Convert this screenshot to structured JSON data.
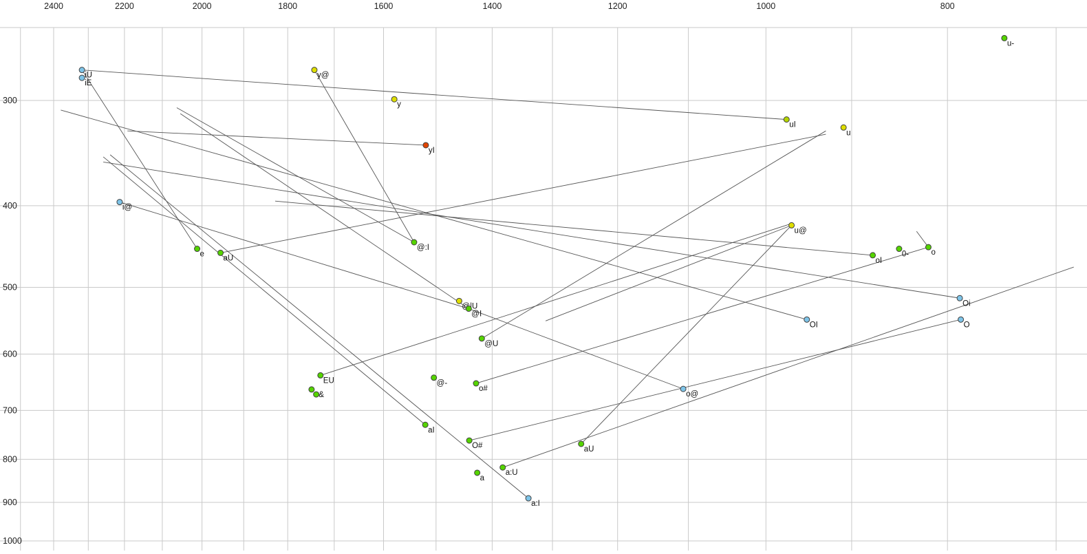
{
  "chart_data": {
    "type": "scatter",
    "title": "",
    "xlabel": "",
    "ylabel": "",
    "x_axis": {
      "ticks": [
        2400,
        2200,
        2000,
        1800,
        1600,
        1400,
        1200,
        1000,
        800
      ],
      "scale": "log",
      "reversed": true
    },
    "y_axis": {
      "ticks": [
        300,
        400,
        500,
        600,
        700,
        800,
        900,
        1000
      ],
      "scale": "log",
      "reversed": true
    },
    "grid": {
      "x_min": 700,
      "x_max": 2500,
      "x_step": 100,
      "y_min": 300,
      "y_max": 1000,
      "y_step": 100,
      "color": "#c9c9c9"
    },
    "colors": {
      "green": "#55d400",
      "yellow": "#dede00",
      "yellowgreen": "#b4d400",
      "blue": "#7ec4e8",
      "red": "#e04400",
      "point_stroke": "#404040",
      "line": "#555555",
      "label": "#111111",
      "tick": "#222222"
    },
    "points": [
      {
        "label": "u-",
        "f2": 746,
        "f1": 253,
        "color": "green"
      },
      {
        "label": "iU",
        "f2": 2318,
        "f1": 276,
        "color": "blue"
      },
      {
        "label": "iE",
        "f2": 2318,
        "f1": 282,
        "color": "blue"
      },
      {
        "label": "y@",
        "f2": 1742,
        "f1": 276,
        "color": "yellow"
      },
      {
        "label": "y",
        "f2": 1579,
        "f1": 299,
        "color": "yellow"
      },
      {
        "label": "uI",
        "f2": 975,
        "f1": 316,
        "color": "yellowgreen"
      },
      {
        "label": "u",
        "f2": 909,
        "f1": 323,
        "color": "yellow"
      },
      {
        "label": "yI",
        "f2": 1519,
        "f1": 339,
        "color": "red"
      },
      {
        "label": "i@",
        "f2": 2213,
        "f1": 396,
        "color": "blue"
      },
      {
        "label": "u@",
        "f2": 969,
        "f1": 422,
        "color": "yellow"
      },
      {
        "label": "0-",
        "f2": 849,
        "f1": 450,
        "color": "green"
      },
      {
        "label": "o",
        "f2": 819,
        "f1": 448,
        "color": "green"
      },
      {
        "label": "oI",
        "f2": 877,
        "f1": 458,
        "color": "green"
      },
      {
        "label": "@:I",
        "f2": 1541,
        "f1": 442,
        "color": "green"
      },
      {
        "label": "e",
        "f2": 2012,
        "f1": 450,
        "color": "green"
      },
      {
        "label": "aU",
        "f2": 1955,
        "f1": 455,
        "color": "green"
      },
      {
        "label": "@|U",
        "f2": 1458,
        "f1": 519,
        "color": "yellow"
      },
      {
        "label": "@I",
        "f2": 1441,
        "f1": 530,
        "color": "green"
      },
      {
        "label": "OI",
        "f2": 951,
        "f1": 546,
        "color": "blue"
      },
      {
        "label": "Oi",
        "f2": 788,
        "f1": 515,
        "color": "blue"
      },
      {
        "label": "O",
        "f2": 787,
        "f1": 546,
        "color": "blue"
      },
      {
        "label": "@U",
        "f2": 1418,
        "f1": 575,
        "color": "green"
      },
      {
        "label": "EU",
        "f2": 1729,
        "f1": 636,
        "color": "green"
      },
      {
        "label": "e&",
        "f2": 1748,
        "f1": 661,
        "color": "green"
      },
      {
        "label": "",
        "f2": 1738,
        "f1": 670,
        "color": "green"
      },
      {
        "label": "@-",
        "f2": 1504,
        "f1": 640,
        "color": "green"
      },
      {
        "label": "o#",
        "f2": 1428,
        "f1": 650,
        "color": "green"
      },
      {
        "label": "o@",
        "f2": 1107,
        "f1": 660,
        "color": "blue"
      },
      {
        "label": "aI",
        "f2": 1520,
        "f1": 728,
        "color": "green"
      },
      {
        "label": "O#",
        "f2": 1440,
        "f1": 760,
        "color": "green"
      },
      {
        "label": "aU",
        "f2": 1255,
        "f1": 767,
        "color": "green"
      },
      {
        "label": "a:U",
        "f2": 1382,
        "f1": 818,
        "color": "green"
      },
      {
        "label": "a",
        "f2": 1426,
        "f1": 830,
        "color": "green"
      },
      {
        "label": "a:I",
        "f2": 1339,
        "f1": 890,
        "color": "blue"
      }
    ],
    "segments": [
      [
        2318,
        276,
        975,
        316
      ],
      [
        2318,
        276,
        2012,
        450
      ],
      [
        1519,
        339,
        2192,
        326
      ],
      [
        1541,
        442,
        2063,
        306
      ],
      [
        1441,
        530,
        2054,
        311
      ],
      [
        1742,
        276,
        1541,
        442
      ],
      [
        2213,
        396,
        1441,
        530
      ],
      [
        1520,
        728,
        2258,
        350
      ],
      [
        1339,
        890,
        2239,
        348
      ],
      [
        1729,
        636,
        969,
        420
      ],
      [
        1418,
        575,
        929,
        326
      ],
      [
        1107,
        660,
        1441,
        530
      ],
      [
        1255,
        767,
        969,
        422
      ],
      [
        1382,
        818,
        685,
        473
      ],
      [
        1440,
        760,
        787,
        546
      ],
      [
        1428,
        650,
        819,
        448
      ],
      [
        951,
        546,
        2379,
        308
      ],
      [
        788,
        515,
        2258,
        355
      ],
      [
        877,
        458,
        1828,
        395
      ],
      [
        969,
        422,
        1311,
        548
      ],
      [
        831,
        429,
        819,
        448
      ],
      [
        1955,
        455,
        929,
        329
      ]
    ]
  }
}
